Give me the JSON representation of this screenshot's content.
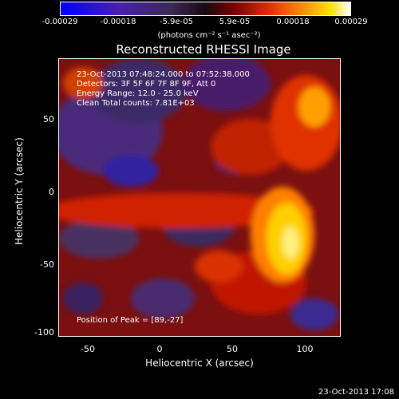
{
  "colorbar": {
    "ticks": [
      "-0.00029",
      "-0.00018",
      "-5.9e-05",
      "5.9e-05",
      "0.00018",
      "0.00029"
    ],
    "units": "(photons cm⁻² s⁻¹ asec⁻²)"
  },
  "title": "Reconstructed RHESSI Image",
  "annotations": {
    "time_range": "23-Oct-2013 07:48:24.000 to 07:52:38.000",
    "detectors": "Detectors: 3F 5F 6F 7F 8F 9F, Att 0",
    "energy": "Energy Range: 12.0 - 25.0 keV",
    "clean": "Clean     Total counts: 7.81E+03",
    "peak": "Position of Peak = [89,-27]"
  },
  "axes": {
    "xlabel": "Heliocentric X (arcsec)",
    "ylabel": "Heliocentric Y (arcsec)",
    "xticks": [
      "-50",
      "0",
      "50",
      "100"
    ],
    "yticks": [
      "50",
      "0",
      "-50",
      "-100"
    ]
  },
  "footer": {
    "timestamp": "23-Oct-2013 17:08"
  }
}
